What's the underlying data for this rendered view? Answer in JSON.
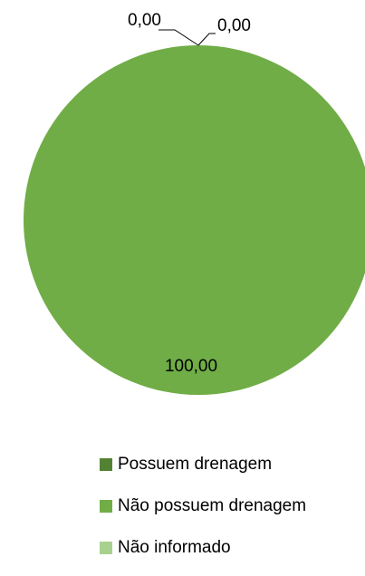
{
  "chart_data": {
    "type": "pie",
    "title": "",
    "slices": [
      {
        "label": "Possuem drenagem",
        "value": 0,
        "value_label": "0,00",
        "color": "#548235"
      },
      {
        "label": "Não possuem drenagem",
        "value": 100,
        "value_label": "100,00",
        "color": "#70ad47"
      },
      {
        "label": "Não informado",
        "value": 0,
        "value_label": "0,00",
        "color": "#a9d18e"
      }
    ],
    "legend": "bottom"
  }
}
